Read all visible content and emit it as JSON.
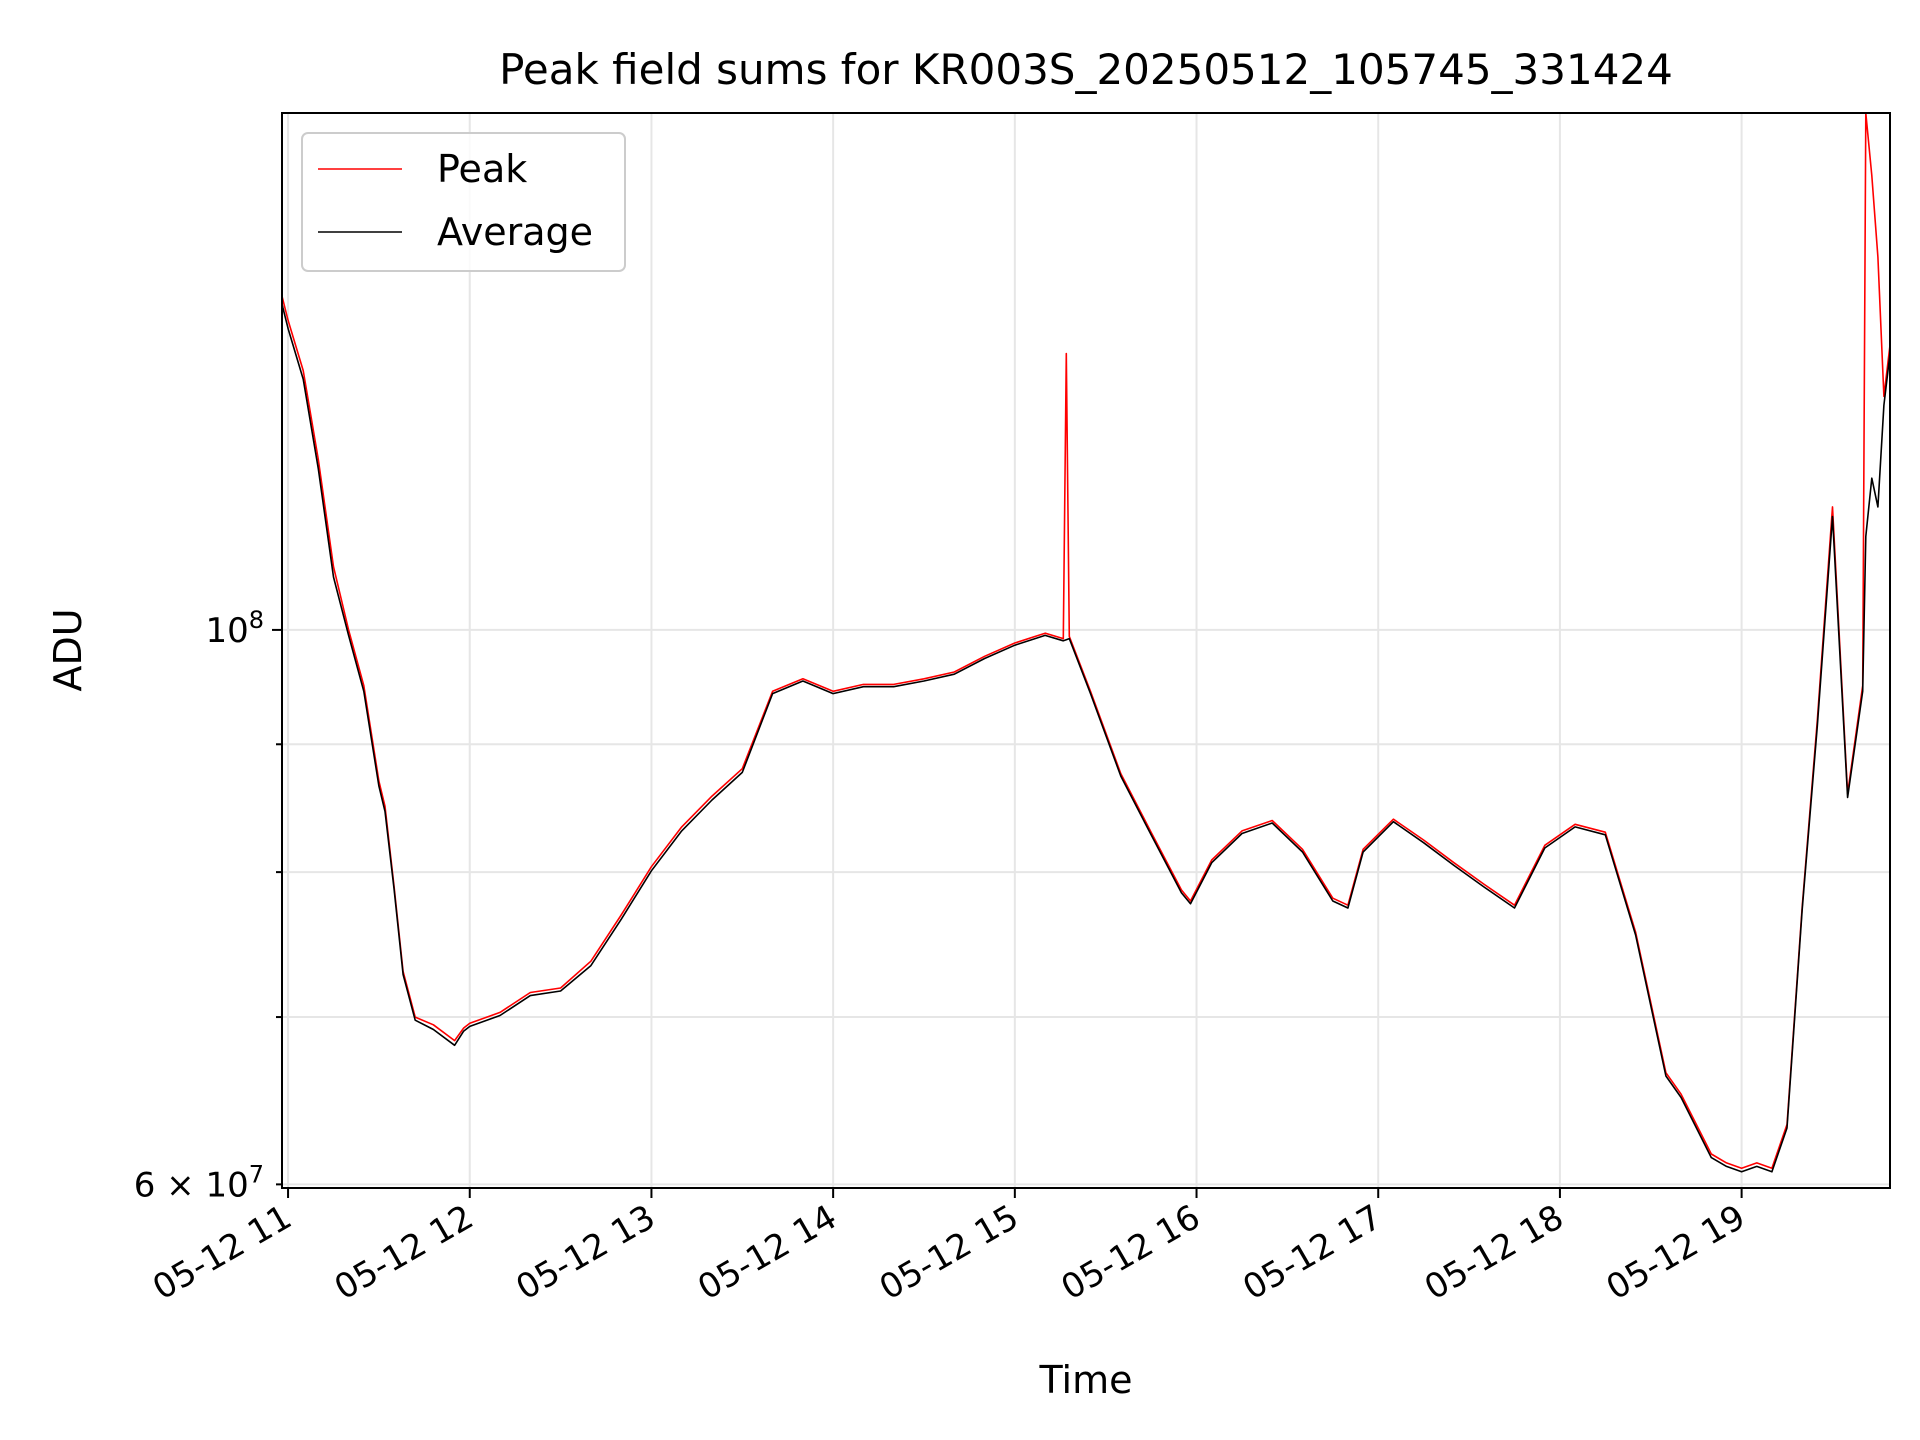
{
  "chart_data": {
    "type": "line",
    "title": "Peak field sums for KR003S_20250512_105745_331424",
    "xlabel": "Time",
    "ylabel": "ADU",
    "yscale": "log",
    "grid": true,
    "legend_position": "top-left",
    "x_tick_labels": [
      "05-12 11",
      "05-12 12",
      "05-12 13",
      "05-12 14",
      "05-12 15",
      "05-12 16",
      "05-12 17",
      "05-12 18",
      "05-12 19"
    ],
    "y_tick_labels": [
      {
        "value": 100000000,
        "base": "10",
        "exponent": "8"
      },
      {
        "value": 60000000,
        "mantissa": "6",
        "times": "×",
        "base": "10",
        "exponent": "7"
      }
    ],
    "xlim": [
      "2025-05-12 10:58",
      "2025-05-12 19:49"
    ],
    "ylim": [
      59800000,
      161000000
    ],
    "series": [
      {
        "name": "Peak",
        "color": "#ff0000",
        "points": [
          [
            "2025-05-12 10:58",
            136000000
          ],
          [
            "2025-05-12 11:00",
            133000000
          ],
          [
            "2025-05-12 11:05",
            127000000
          ],
          [
            "2025-05-12 11:10",
            117000000
          ],
          [
            "2025-05-12 11:15",
            106000000
          ],
          [
            "2025-05-12 11:20",
            100000000
          ],
          [
            "2025-05-12 11:25",
            95000000
          ],
          [
            "2025-05-12 11:30",
            87000000
          ],
          [
            "2025-05-12 11:32",
            85000000
          ],
          [
            "2025-05-12 11:35",
            79000000
          ],
          [
            "2025-05-12 11:38",
            73000000
          ],
          [
            "2025-05-12 11:42",
            70000000
          ],
          [
            "2025-05-12 11:48",
            69500000
          ],
          [
            "2025-05-12 11:55",
            68500000
          ],
          [
            "2025-05-12 11:58",
            69300000
          ],
          [
            "2025-05-12 12:00",
            69600000
          ],
          [
            "2025-05-12 12:10",
            70300000
          ],
          [
            "2025-05-12 12:20",
            71600000
          ],
          [
            "2025-05-12 12:30",
            71900000
          ],
          [
            "2025-05-12 12:40",
            73700000
          ],
          [
            "2025-05-12 12:50",
            76900000
          ],
          [
            "2025-05-12 13:00",
            80400000
          ],
          [
            "2025-05-12 13:10",
            83400000
          ],
          [
            "2025-05-12 13:20",
            85800000
          ],
          [
            "2025-05-12 13:30",
            88000000
          ],
          [
            "2025-05-12 13:40",
            94500000
          ],
          [
            "2025-05-12 13:50",
            95600000
          ],
          [
            "2025-05-12 14:00",
            94500000
          ],
          [
            "2025-05-12 14:10",
            95100000
          ],
          [
            "2025-05-12 14:20",
            95100000
          ],
          [
            "2025-05-12 14:30",
            95600000
          ],
          [
            "2025-05-12 14:40",
            96200000
          ],
          [
            "2025-05-12 14:50",
            97600000
          ],
          [
            "2025-05-12 15:00",
            98800000
          ],
          [
            "2025-05-12 15:10",
            99700000
          ],
          [
            "2025-05-12 15:16",
            99200000
          ],
          [
            "2025-05-12 15:17",
            129000000
          ],
          [
            "2025-05-12 15:18",
            99400000
          ],
          [
            "2025-05-12 15:25",
            94500000
          ],
          [
            "2025-05-12 15:35",
            87600000
          ],
          [
            "2025-05-12 15:45",
            83000000
          ],
          [
            "2025-05-12 15:55",
            78700000
          ],
          [
            "2025-05-12 15:58",
            77900000
          ],
          [
            "2025-05-12 16:05",
            80900000
          ],
          [
            "2025-05-12 16:15",
            83100000
          ],
          [
            "2025-05-12 16:25",
            83900000
          ],
          [
            "2025-05-12 16:35",
            81700000
          ],
          [
            "2025-05-12 16:45",
            78100000
          ],
          [
            "2025-05-12 16:50",
            77600000
          ],
          [
            "2025-05-12 16:55",
            81700000
          ],
          [
            "2025-05-12 17:05",
            84000000
          ],
          [
            "2025-05-12 17:15",
            82400000
          ],
          [
            "2025-05-12 17:25",
            80700000
          ],
          [
            "2025-05-12 17:35",
            79100000
          ],
          [
            "2025-05-12 17:45",
            77600000
          ],
          [
            "2025-05-12 17:55",
            82000000
          ],
          [
            "2025-05-12 18:05",
            83600000
          ],
          [
            "2025-05-12 18:15",
            83000000
          ],
          [
            "2025-05-12 18:25",
            75700000
          ],
          [
            "2025-05-12 18:35",
            66500000
          ],
          [
            "2025-05-12 18:40",
            65200000
          ],
          [
            "2025-05-12 18:50",
            61700000
          ],
          [
            "2025-05-12 18:55",
            61200000
          ],
          [
            "2025-05-12 19:00",
            60900000
          ],
          [
            "2025-05-12 19:05",
            61200000
          ],
          [
            "2025-05-12 19:10",
            60900000
          ],
          [
            "2025-05-12 19:15",
            63400000
          ],
          [
            "2025-05-12 19:20",
            77500000
          ],
          [
            "2025-05-12 19:25",
            92000000
          ],
          [
            "2025-05-12 19:30",
            112000000
          ],
          [
            "2025-05-12 19:35",
            86000000
          ],
          [
            "2025-05-12 19:40",
            95000000
          ],
          [
            "2025-05-12 19:41",
            161000000
          ],
          [
            "2025-05-12 19:43",
            152000000
          ],
          [
            "2025-05-12 19:45",
            141000000
          ],
          [
            "2025-05-12 19:47",
            124000000
          ],
          [
            "2025-05-12 19:49",
            130000000
          ]
        ]
      },
      {
        "name": "Average",
        "color": "#000000",
        "points": [
          [
            "2025-05-12 10:58",
            135000000
          ],
          [
            "2025-05-12 11:00",
            132000000
          ],
          [
            "2025-05-12 11:05",
            126000000
          ],
          [
            "2025-05-12 11:10",
            116000000
          ],
          [
            "2025-05-12 11:15",
            105000000
          ],
          [
            "2025-05-12 11:20",
            99500000
          ],
          [
            "2025-05-12 11:25",
            94500000
          ],
          [
            "2025-05-12 11:30",
            86600000
          ],
          [
            "2025-05-12 11:32",
            84600000
          ],
          [
            "2025-05-12 11:35",
            78800000
          ],
          [
            "2025-05-12 11:38",
            72800000
          ],
          [
            "2025-05-12 11:42",
            69800000
          ],
          [
            "2025-05-12 11:48",
            69200000
          ],
          [
            "2025-05-12 11:55",
            68200000
          ],
          [
            "2025-05-12 11:58",
            69100000
          ],
          [
            "2025-05-12 12:00",
            69400000
          ],
          [
            "2025-05-12 12:10",
            70100000
          ],
          [
            "2025-05-12 12:20",
            71400000
          ],
          [
            "2025-05-12 12:30",
            71700000
          ],
          [
            "2025-05-12 12:40",
            73400000
          ],
          [
            "2025-05-12 12:50",
            76600000
          ],
          [
            "2025-05-12 13:00",
            80100000
          ],
          [
            "2025-05-12 13:10",
            83100000
          ],
          [
            "2025-05-12 13:20",
            85500000
          ],
          [
            "2025-05-12 13:30",
            87700000
          ],
          [
            "2025-05-12 13:40",
            94300000
          ],
          [
            "2025-05-12 13:50",
            95400000
          ],
          [
            "2025-05-12 14:00",
            94300000
          ],
          [
            "2025-05-12 14:10",
            94900000
          ],
          [
            "2025-05-12 14:20",
            94900000
          ],
          [
            "2025-05-12 14:30",
            95400000
          ],
          [
            "2025-05-12 14:40",
            96000000
          ],
          [
            "2025-05-12 14:50",
            97400000
          ],
          [
            "2025-05-12 15:00",
            98600000
          ],
          [
            "2025-05-12 15:10",
            99500000
          ],
          [
            "2025-05-12 15:16",
            99000000
          ],
          [
            "2025-05-12 15:17",
            99100000
          ],
          [
            "2025-05-12 15:18",
            99200000
          ],
          [
            "2025-05-12 15:25",
            94300000
          ],
          [
            "2025-05-12 15:35",
            87400000
          ],
          [
            "2025-05-12 15:45",
            82800000
          ],
          [
            "2025-05-12 15:55",
            78500000
          ],
          [
            "2025-05-12 15:58",
            77700000
          ],
          [
            "2025-05-12 16:05",
            80700000
          ],
          [
            "2025-05-12 16:15",
            82900000
          ],
          [
            "2025-05-12 16:25",
            83700000
          ],
          [
            "2025-05-12 16:35",
            81500000
          ],
          [
            "2025-05-12 16:45",
            77900000
          ],
          [
            "2025-05-12 16:50",
            77400000
          ],
          [
            "2025-05-12 16:55",
            81500000
          ],
          [
            "2025-05-12 17:05",
            83800000
          ],
          [
            "2025-05-12 17:15",
            82200000
          ],
          [
            "2025-05-12 17:25",
            80500000
          ],
          [
            "2025-05-12 17:35",
            78900000
          ],
          [
            "2025-05-12 17:45",
            77400000
          ],
          [
            "2025-05-12 17:55",
            81800000
          ],
          [
            "2025-05-12 18:05",
            83400000
          ],
          [
            "2025-05-12 18:15",
            82800000
          ],
          [
            "2025-05-12 18:25",
            75500000
          ],
          [
            "2025-05-12 18:35",
            66300000
          ],
          [
            "2025-05-12 18:40",
            65000000
          ],
          [
            "2025-05-12 18:50",
            61500000
          ],
          [
            "2025-05-12 18:55",
            61000000
          ],
          [
            "2025-05-12 19:00",
            60700000
          ],
          [
            "2025-05-12 19:05",
            61000000
          ],
          [
            "2025-05-12 19:10",
            60700000
          ],
          [
            "2025-05-12 19:15",
            63200000
          ],
          [
            "2025-05-12 19:20",
            77300000
          ],
          [
            "2025-05-12 19:25",
            91500000
          ],
          [
            "2025-05-12 19:30",
            111000000
          ],
          [
            "2025-05-12 19:35",
            85700000
          ],
          [
            "2025-05-12 19:40",
            94500000
          ],
          [
            "2025-05-12 19:41",
            109000000
          ],
          [
            "2025-05-12 19:43",
            115000000
          ],
          [
            "2025-05-12 19:45",
            112000000
          ],
          [
            "2025-05-12 19:47",
            123000000
          ],
          [
            "2025-05-12 19:49",
            129000000
          ]
        ]
      }
    ]
  }
}
